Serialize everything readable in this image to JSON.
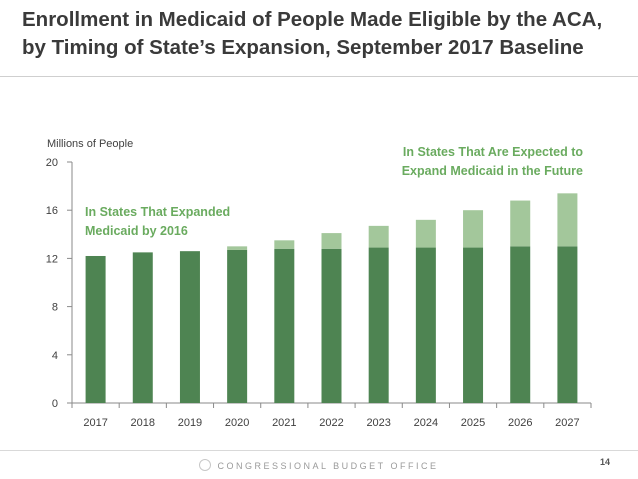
{
  "slide": {
    "title_line1": "Enrollment in Medicaid of People Made Eligible by the ACA,",
    "title_line2": "by Timing of State’s Expansion, September 2017 Baseline",
    "footer": "CONGRESSIONAL BUDGET OFFICE",
    "page_number": "14"
  },
  "chart_data": {
    "type": "bar",
    "stacked": true,
    "ylabel": "Millions of People",
    "ylim": [
      0,
      20
    ],
    "yticks": [
      0,
      4,
      8,
      12,
      16,
      20
    ],
    "categories": [
      "2017",
      "2018",
      "2019",
      "2020",
      "2021",
      "2022",
      "2023",
      "2024",
      "2025",
      "2026",
      "2027"
    ],
    "series": [
      {
        "name": "In States That Expanded Medicaid by 2016",
        "label_lines": [
          "In States That Expanded",
          "Medicaid by 2016"
        ],
        "color": "#4e8452",
        "values": [
          12.2,
          12.5,
          12.6,
          12.7,
          12.8,
          12.8,
          12.9,
          12.9,
          12.9,
          13.0,
          13.0
        ]
      },
      {
        "name": "In States That Are Expected to Expand Medicaid in the Future",
        "label_lines": [
          "In States That Are Expected to",
          "Expand Medicaid in the Future"
        ],
        "color": "#a3c79b",
        "values": [
          0,
          0,
          0,
          0.3,
          0.7,
          1.3,
          1.8,
          2.3,
          3.1,
          3.8,
          4.4
        ]
      }
    ],
    "label_color": "#6aab5f"
  }
}
